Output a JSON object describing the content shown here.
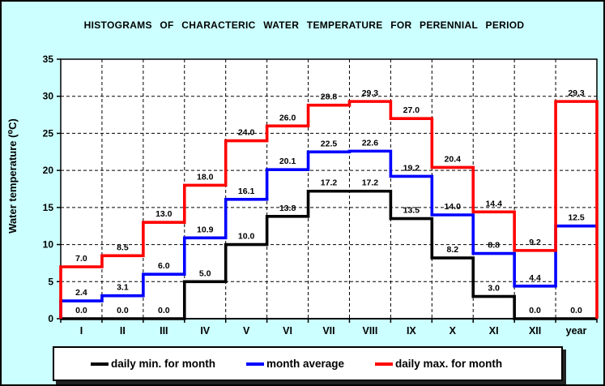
{
  "window": {
    "background_color": "#CCFFFF",
    "plot_background_color": "#FFFFFF"
  },
  "title": "HISTOGRAMS OF CHARACTERIC WATER TEMPERATURE FOR PERENNIAL PERIOD",
  "y_axis_title": "Water temperature (⁰C)",
  "legend": {
    "items": [
      {
        "label": "daily min. for month",
        "color": "#000000"
      },
      {
        "label": "month average",
        "color": "#0000FF"
      },
      {
        "label": "daily max. for month",
        "color": "#FF0000"
      }
    ]
  },
  "chart_data": {
    "type": "step-line",
    "title": "HISTOGRAMS OF CHARACTERIC WATER TEMPERATURE FOR PERENNIAL PERIOD",
    "xlabel": "",
    "ylabel": "Water temperature (⁰C)",
    "categories": [
      "I",
      "II",
      "III",
      "IV",
      "V",
      "VI",
      "VII",
      "VIII",
      "IX",
      "X",
      "XI",
      "XII",
      "year"
    ],
    "series": [
      {
        "name": "daily min. for month",
        "color": "#000000",
        "values": [
          0.0,
          0.0,
          0.0,
          5.0,
          10.0,
          13.8,
          17.2,
          17.2,
          13.5,
          8.2,
          3.0,
          0.0,
          0.0
        ]
      },
      {
        "name": "month average",
        "color": "#0000FF",
        "values": [
          2.4,
          3.1,
          6.0,
          10.9,
          16.1,
          20.1,
          22.5,
          22.6,
          19.2,
          14.0,
          8.8,
          4.4,
          12.5
        ]
      },
      {
        "name": "daily max. for month",
        "color": "#FF0000",
        "values": [
          7.0,
          8.5,
          13.0,
          18.0,
          24.0,
          26.0,
          28.8,
          29.3,
          27.0,
          20.4,
          14.4,
          9.2,
          29.3
        ]
      }
    ],
    "ylim": [
      0,
      35
    ],
    "ytick_step": 5,
    "grid": true,
    "grid_style": "dashed",
    "legend_position": "bottom",
    "data_labels_decimals": 1
  }
}
